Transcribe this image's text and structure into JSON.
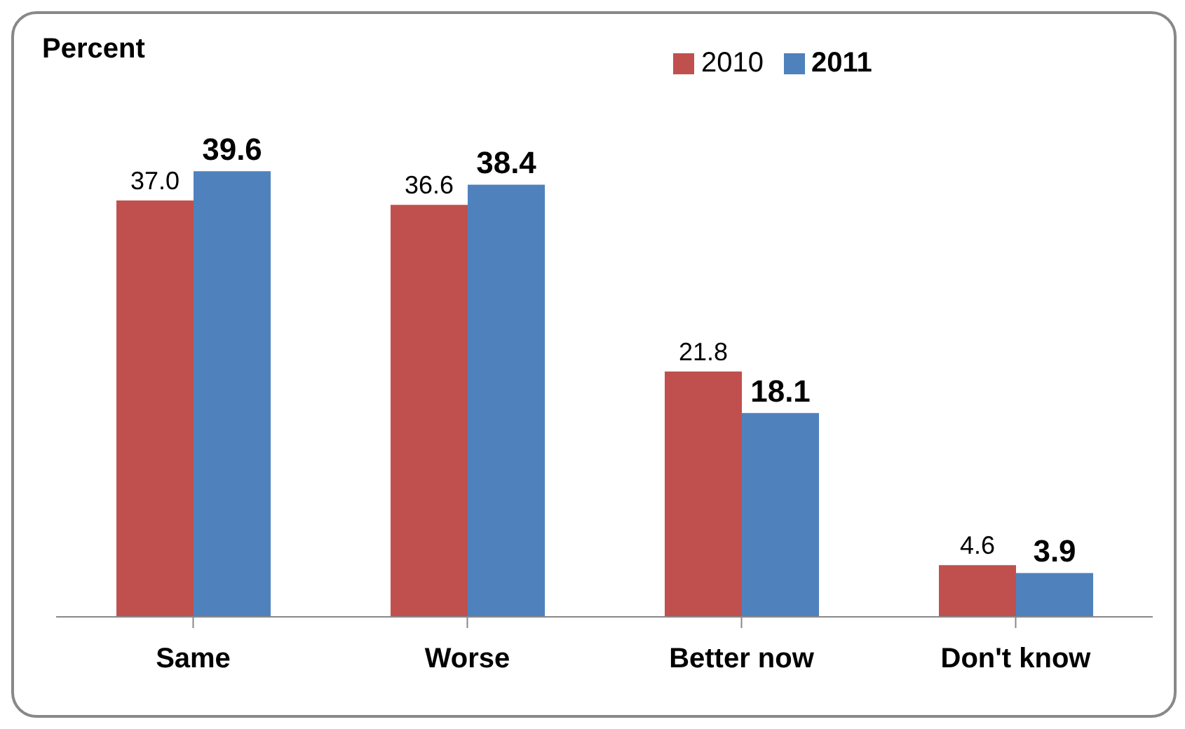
{
  "chart_data": {
    "type": "bar",
    "ylabel": "Percent",
    "categories": [
      "Same",
      "Worse",
      "Better now",
      "Don't know"
    ],
    "series": [
      {
        "name": "2010",
        "color": "#c0504d",
        "values": [
          37.0,
          36.6,
          21.8,
          4.6
        ],
        "value_labels": [
          "37.0",
          "36.6",
          "21.8",
          "4.6"
        ]
      },
      {
        "name": "2011",
        "color": "#4f81bd",
        "values": [
          39.6,
          38.4,
          18.1,
          3.9
        ],
        "value_labels": [
          "39.6",
          "38.4",
          "18.1",
          "3.9"
        ]
      }
    ],
    "legend": "top right"
  }
}
